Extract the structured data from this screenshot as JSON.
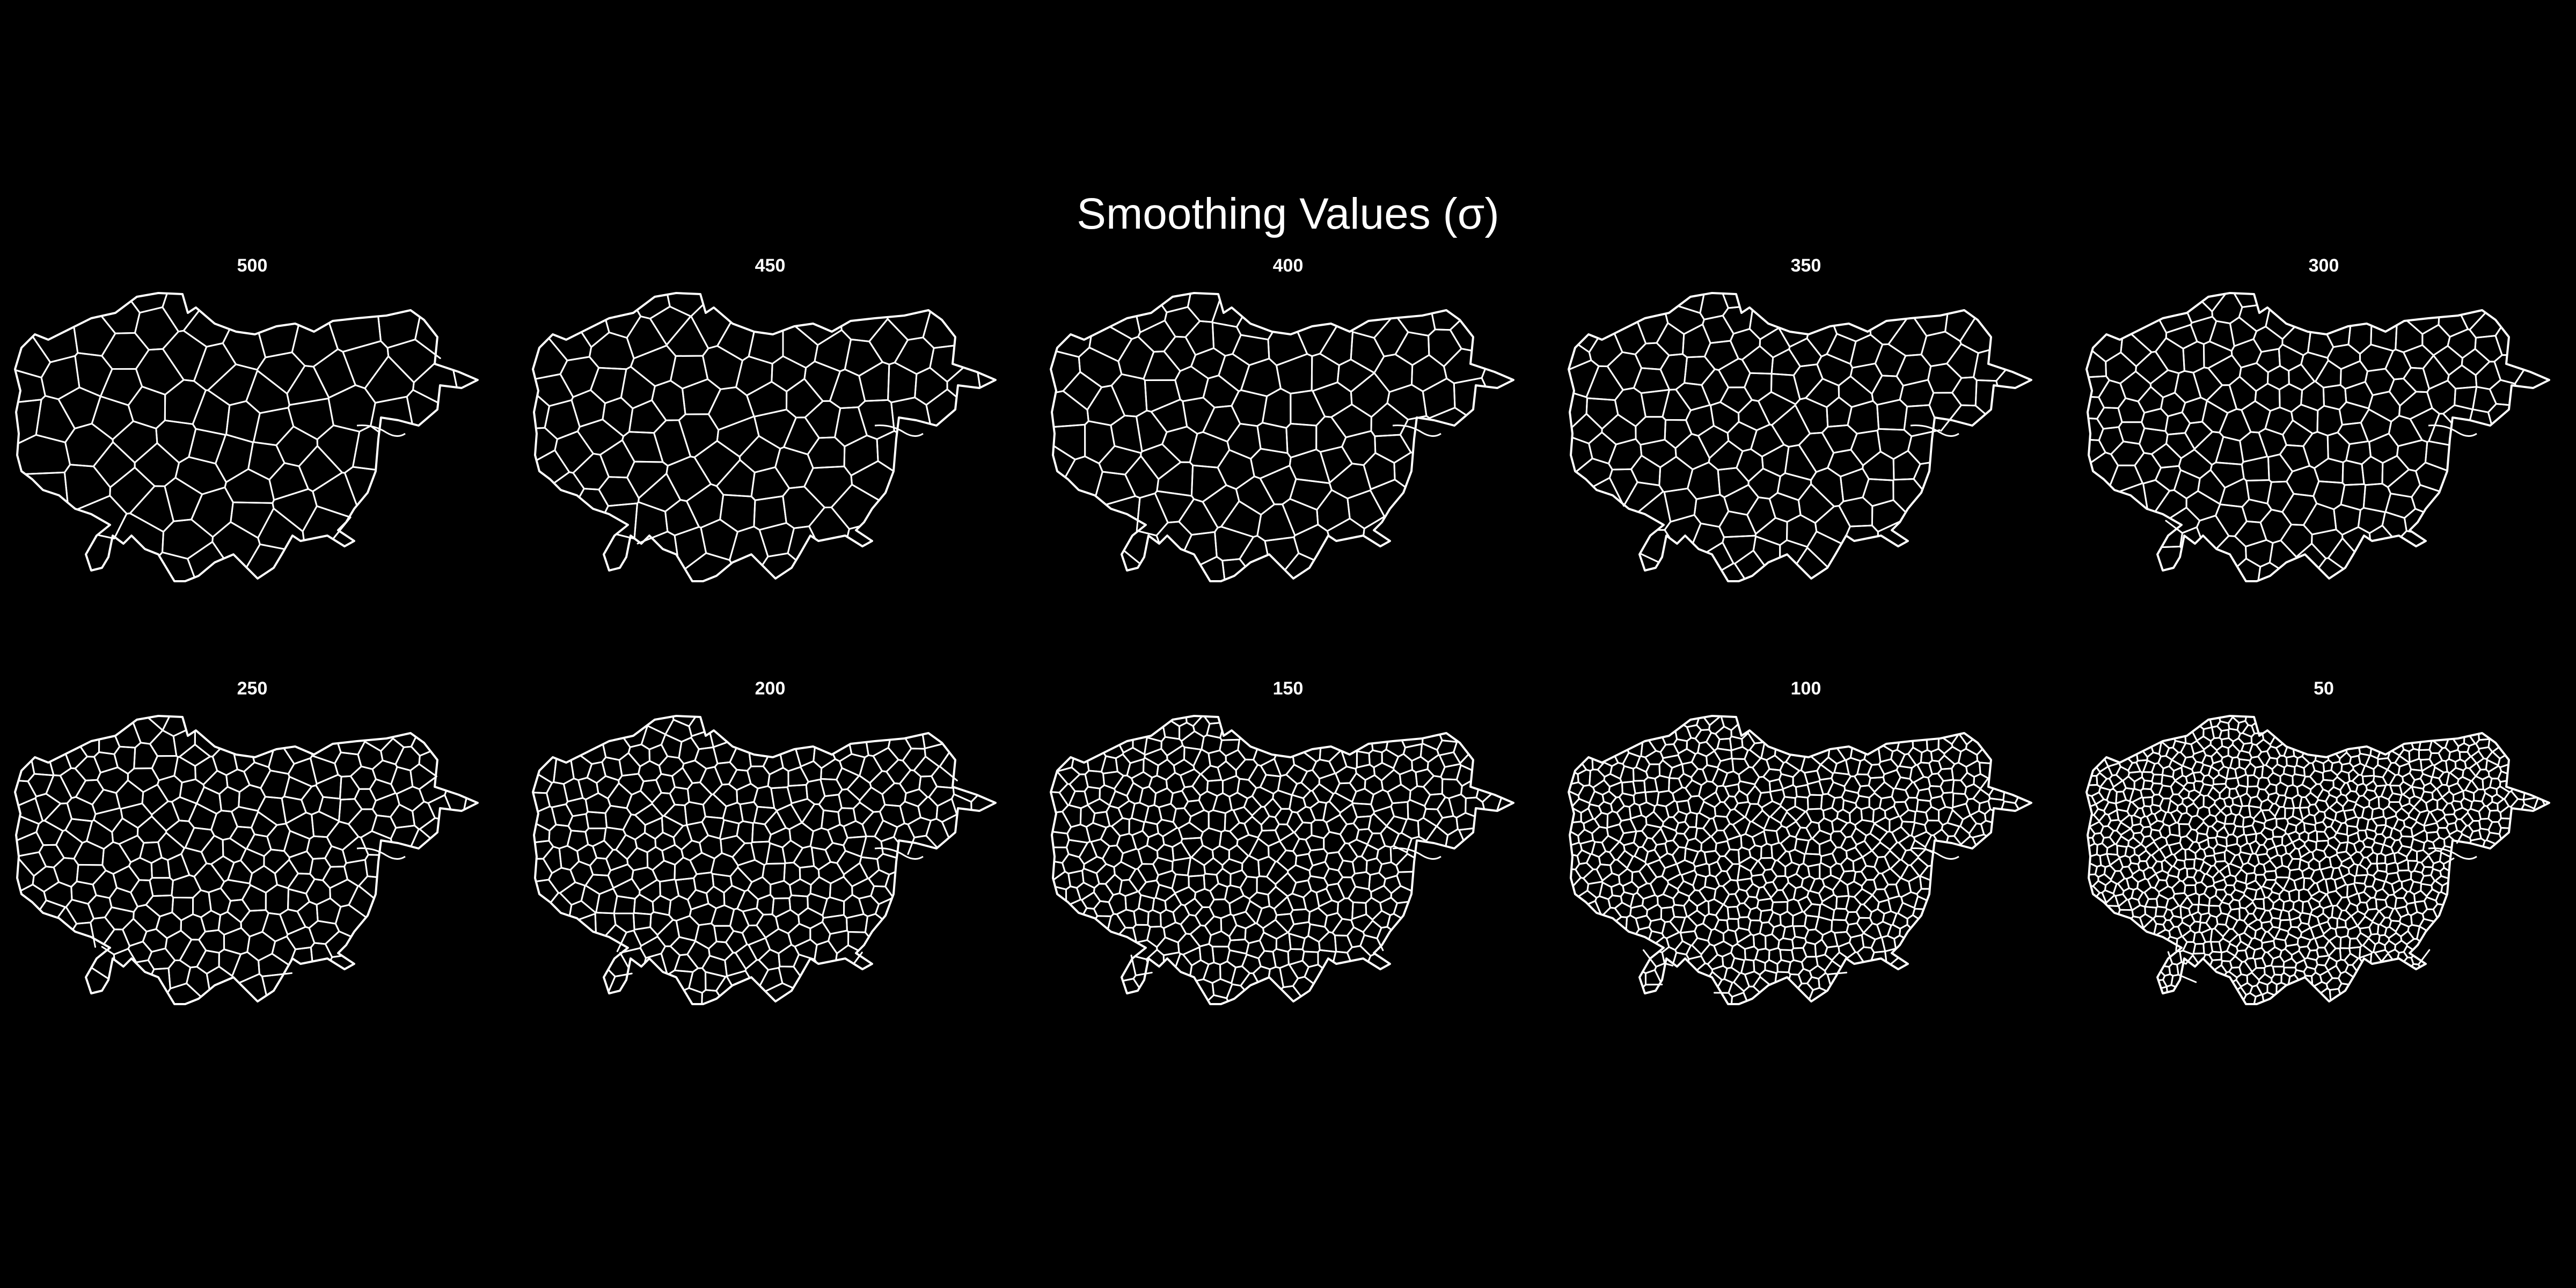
{
  "title": "Smoothing Values (σ)",
  "colors": {
    "background": "#000000",
    "lines": "#ffffff",
    "text": "#ffffff"
  },
  "panels": [
    {
      "label": "500",
      "sigma": 500
    },
    {
      "label": "450",
      "sigma": 450
    },
    {
      "label": "400",
      "sigma": 400
    },
    {
      "label": "350",
      "sigma": 350
    },
    {
      "label": "300",
      "sigma": 300
    },
    {
      "label": "250",
      "sigma": 250
    },
    {
      "label": "200",
      "sigma": 200
    },
    {
      "label": "150",
      "sigma": 150
    },
    {
      "label": "100",
      "sigma": 100
    },
    {
      "label": "50",
      "sigma": 50
    }
  ]
}
